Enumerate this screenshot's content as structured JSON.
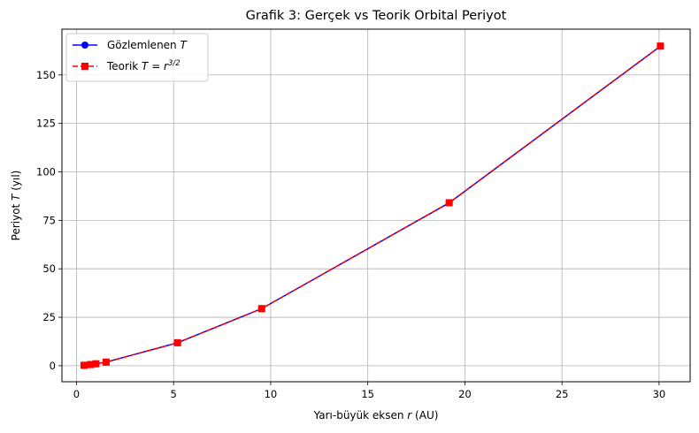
{
  "chart_data": {
    "type": "line",
    "title": "Grafik 3: Gerçek vs Teorik Orbital Periyot",
    "xlabel_text": "Yarı-büyük eksen ",
    "xlabel_var": "r",
    "xlabel_unit": " (AU)",
    "ylabel_text": "Periyot ",
    "ylabel_var": "T",
    "ylabel_unit": " (yıl)",
    "xlim": [
      -0.75,
      31.6
    ],
    "ylim": [
      -8.25,
      173.6
    ],
    "xticks": [
      0,
      5,
      10,
      15,
      20,
      25,
      30
    ],
    "xtick_labels": [
      "0",
      "5",
      "10",
      "15",
      "20",
      "25",
      "30"
    ],
    "yticks": [
      0,
      25,
      50,
      75,
      100,
      125,
      150
    ],
    "ytick_labels": [
      "0",
      "25",
      "50",
      "75",
      "100",
      "125",
      "150"
    ],
    "grid": true,
    "legend_position": "top-left",
    "x": [
      0.387,
      0.723,
      1.0,
      1.524,
      5.203,
      9.537,
      19.191,
      30.069
    ],
    "series": [
      {
        "name": "Gözlemlenen ",
        "name_var": "T",
        "marker": "circle",
        "line": "solid",
        "color": "#0000ff",
        "values": [
          0.241,
          0.615,
          1.0,
          1.881,
          11.86,
          29.46,
          84.01,
          164.8
        ]
      },
      {
        "name": "Teorik ",
        "name_var": "T = r",
        "name_sup": "3/2",
        "marker": "square",
        "line": "dashed",
        "color": "#ff0000",
        "values": [
          0.241,
          0.615,
          1.0,
          1.881,
          11.868,
          29.452,
          84.07,
          164.88
        ]
      }
    ]
  }
}
